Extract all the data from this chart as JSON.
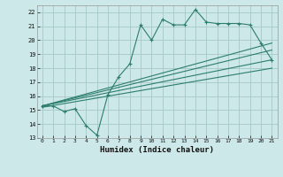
{
  "bg_color": "#cce8e8",
  "grid_color": "#aacccc",
  "line_color": "#2d7d6e",
  "xlabel": "Humidex (Indice chaleur)",
  "xlim": [
    -0.5,
    21.5
  ],
  "ylim": [
    13,
    22.5
  ],
  "yticks": [
    13,
    14,
    15,
    16,
    17,
    18,
    19,
    20,
    21,
    22
  ],
  "xticks": [
    0,
    1,
    2,
    3,
    4,
    5,
    6,
    7,
    8,
    9,
    10,
    11,
    12,
    13,
    14,
    15,
    16,
    17,
    18,
    19,
    20,
    21
  ],
  "series1_x": [
    0,
    1,
    2,
    3,
    4,
    5,
    6,
    7,
    8,
    9,
    10,
    11,
    12,
    13,
    14,
    15,
    16,
    17,
    18,
    19,
    20,
    21
  ],
  "series1_y": [
    15.3,
    15.3,
    14.9,
    15.1,
    13.9,
    13.2,
    16.1,
    17.4,
    18.3,
    21.1,
    20.0,
    21.5,
    21.1,
    21.1,
    22.2,
    21.3,
    21.2,
    21.2,
    21.2,
    21.1,
    19.8,
    18.6
  ],
  "series2_x": [
    0,
    21
  ],
  "series2_y": [
    15.3,
    19.8
  ],
  "series3_x": [
    0,
    21
  ],
  "series3_y": [
    15.3,
    19.3
  ],
  "series4_x": [
    0,
    21
  ],
  "series4_y": [
    15.3,
    18.6
  ],
  "series5_x": [
    0,
    21
  ],
  "series5_y": [
    15.2,
    18.0
  ]
}
